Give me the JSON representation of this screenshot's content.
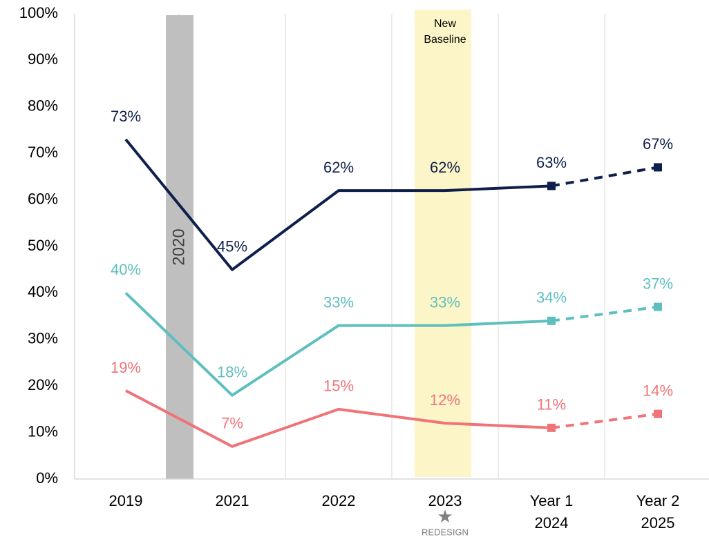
{
  "chart_data": {
    "type": "line",
    "categories": [
      "2019",
      "2021",
      "2022",
      "2023",
      "Year 1\n2024",
      "Year 2\n2025"
    ],
    "series": [
      {
        "color": "#0f1f4b",
        "values": [
          73,
          45,
          62,
          62,
          63,
          67
        ],
        "value_labels": [
          "73%",
          "45%",
          "62%",
          "62%",
          "63%",
          "67%"
        ]
      },
      {
        "color": "#5fbfbf",
        "values": [
          40,
          18,
          33,
          33,
          34,
          37
        ],
        "value_labels": [
          "40%",
          "18%",
          "33%",
          "33%",
          "34%",
          "37%"
        ]
      },
      {
        "color": "#f07378",
        "values": [
          19,
          7,
          15,
          12,
          11,
          14
        ],
        "value_labels": [
          "19%",
          "7%",
          "15%",
          "12%",
          "11%",
          "14%"
        ]
      }
    ],
    "ylim": [
      0,
      100
    ],
    "yticks": [
      {
        "value": 0,
        "label": "0%"
      },
      {
        "value": 10,
        "label": "10%"
      },
      {
        "value": 20,
        "label": "20%"
      },
      {
        "value": 30,
        "label": "30%"
      },
      {
        "value": 40,
        "label": "40%"
      },
      {
        "value": 50,
        "label": "50%"
      },
      {
        "value": 60,
        "label": "60%"
      },
      {
        "value": 70,
        "label": "70%"
      },
      {
        "value": 80,
        "label": "80%"
      },
      {
        "value": 90,
        "label": "90%"
      },
      {
        "value": 100,
        "label": "100%"
      }
    ],
    "dashed_from_index": 4,
    "markers_from_index": 4,
    "grid": true,
    "annotations": {
      "gap_year": "2020",
      "baseline": "New\nBaseline",
      "redesign": "REDESIGN"
    }
  }
}
